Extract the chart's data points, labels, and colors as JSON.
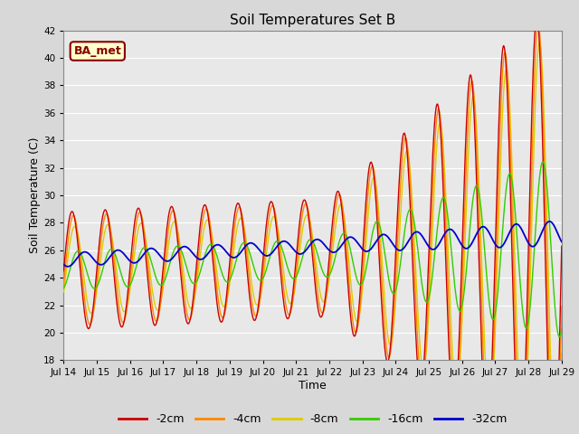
{
  "title": "Soil Temperatures Set B",
  "xlabel": "Time",
  "ylabel": "Soil Temperature (C)",
  "ylim": [
    18,
    42
  ],
  "yticks": [
    18,
    20,
    22,
    24,
    26,
    28,
    30,
    32,
    34,
    36,
    38,
    40,
    42
  ],
  "xtick_labels": [
    "Jul 14",
    "Jul 15",
    "Jul 16",
    "Jul 17",
    "Jul 18",
    "Jul 19",
    "Jul 20",
    "Jul 21",
    "Jul 22",
    "Jul 23",
    "Jul 24",
    "Jul 25",
    "Jul 26",
    "Jul 27",
    "Jul 28",
    "Jul 29"
  ],
  "series_colors": {
    "-2cm": "#cc0000",
    "-4cm": "#ff8800",
    "-8cm": "#ddcc00",
    "-16cm": "#33cc00",
    "-32cm": "#0000cc"
  },
  "legend_label": "BA_met",
  "legend_bg": "#ffffcc",
  "legend_border": "#880000",
  "background_color": "#e8e8e8",
  "grid_color": "#ffffff",
  "fig_bg": "#d8d8d8"
}
